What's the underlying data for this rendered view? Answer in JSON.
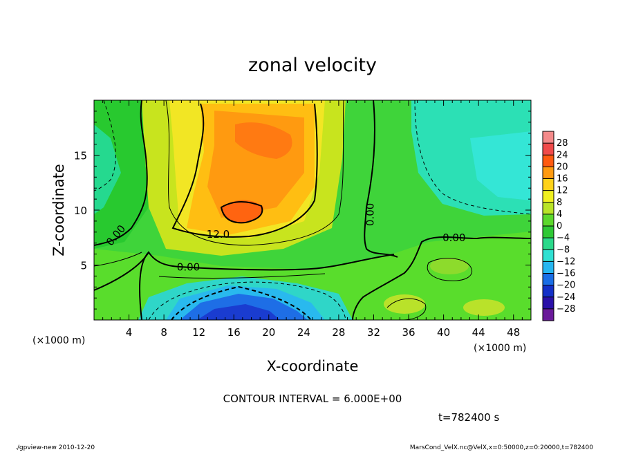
{
  "chart_data": {
    "type": "heatmap",
    "title": "zonal velocity",
    "xlabel": "X-coordinate",
    "ylabel": "Z-coordinate",
    "x_unit": "(×1000 m)",
    "y_unit": "(×1000 m)",
    "xlim": [
      0,
      50
    ],
    "ylim": [
      0,
      20
    ],
    "x_ticks": [
      4,
      8,
      12,
      16,
      20,
      24,
      28,
      32,
      36,
      40,
      44,
      48
    ],
    "y_ticks": [
      5,
      10,
      15
    ],
    "colorbar": {
      "levels": [
        28,
        24,
        20,
        16,
        12,
        8,
        4,
        0,
        -4,
        -8,
        -12,
        -16,
        -20,
        -24,
        -28
      ],
      "labels": [
        "28",
        "24",
        "20",
        "16",
        "12",
        "8",
        "4",
        "0",
        "−4",
        "−8",
        "−12",
        "−16",
        "−20",
        "−24",
        "−28"
      ]
    },
    "contour_labels": [
      {
        "text": "0.00",
        "x": 2.5,
        "z": 7.7,
        "angle": -50
      },
      {
        "text": "12.0",
        "x": 14.2,
        "z": 7.8,
        "angle": 0
      },
      {
        "text": "0.00",
        "x": 10.8,
        "z": 4.8,
        "angle": 0
      },
      {
        "text": "0.00",
        "x": 31.6,
        "z": 9.6,
        "angle": -90
      },
      {
        "text": "0.00",
        "x": 41.2,
        "z": 7.5,
        "angle": 0
      }
    ],
    "grid": false,
    "legend": "colorbar-right"
  },
  "annotations": {
    "contour_interval": "CONTOUR INTERVAL = 6.000E+00",
    "time": "t=782400 s",
    "footer_left": "./gpview-new  2010-12-20",
    "footer_right": "MarsCond_VelX.nc@VelX,x=0:50000,z=0:20000,t=782400"
  },
  "colors": {
    "positive_high": "#f05050",
    "negative_low": "#4a1a8a",
    "zero_band": "#33cc33"
  }
}
